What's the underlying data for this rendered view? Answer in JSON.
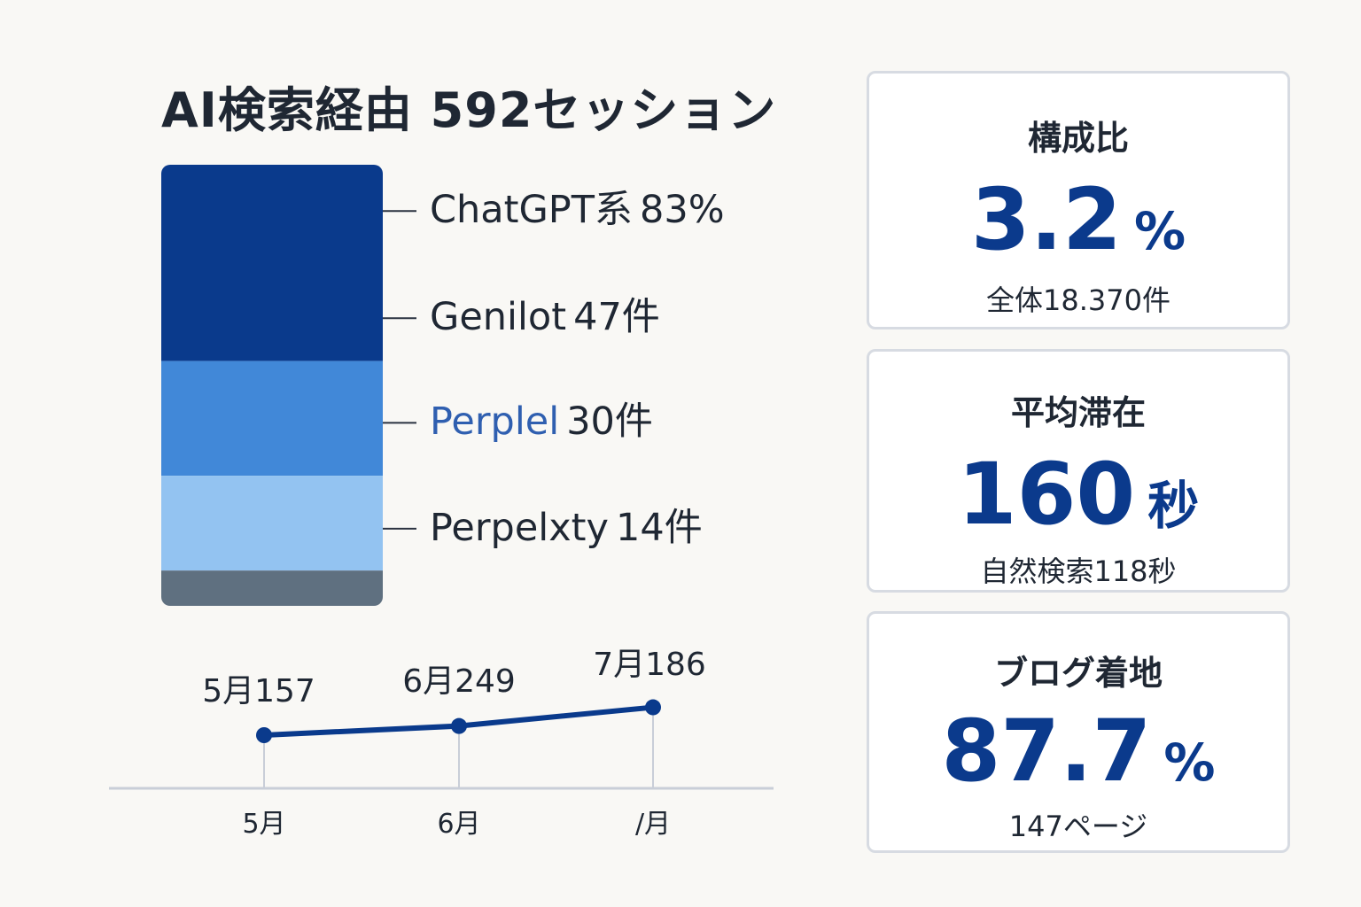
{
  "title": "AI検索経由 592セッション",
  "chart_data": [
    {
      "type": "bar",
      "stacked": true,
      "segments": [
        {
          "name": "ChatGPT系",
          "value_text": "83%",
          "color": "#0a3a8c"
        },
        {
          "name": "Genilot",
          "value_text": "47件",
          "value": 47,
          "color": "#0a3a8c"
        },
        {
          "name": "Perplel",
          "value_text": "30件",
          "value": 30,
          "color": "#4188d8"
        },
        {
          "name": "Perpelxty",
          "value_text": "14件",
          "value": 14,
          "color": "#93c3f1"
        },
        {
          "name": "",
          "value_text": "",
          "color": "#5f7080"
        }
      ],
      "segment_share": [
        0.445,
        0.26,
        0.215,
        0.08
      ],
      "highlight_color": "#2f5fb0"
    },
    {
      "type": "line",
      "categories": [
        "5月",
        "6月",
        "/月"
      ],
      "values": [
        157,
        249,
        186
      ],
      "point_labels": [
        "5月157",
        "6月249",
        "7月186"
      ],
      "marker_y_levels": [
        0,
        0.28,
        0.85
      ],
      "color": "#0a3a8c"
    }
  ],
  "cards": [
    {
      "label": "構成比",
      "value": "3.2",
      "unit": "%",
      "sub": "全体18.370件"
    },
    {
      "label": "平均滞在",
      "value": "160",
      "unit": "秒",
      "sub": "自然検索118秒"
    },
    {
      "label": "ブログ着地",
      "value": "87.7",
      "unit": "%",
      "sub": "147ページ"
    }
  ]
}
